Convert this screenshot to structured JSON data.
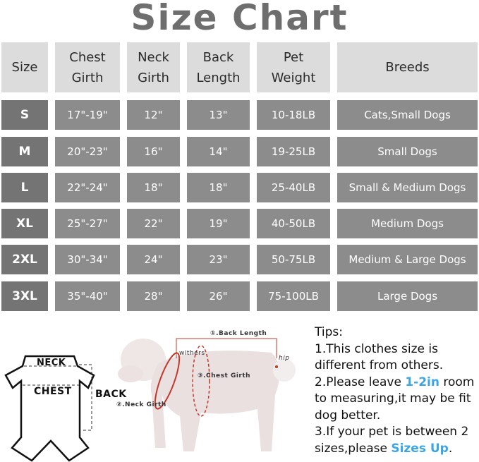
{
  "title": "Size Chart",
  "table": {
    "headers": [
      "Size",
      "Chest Girth",
      "Neck Girth",
      "Back Length",
      "Pet Weight",
      "Breeds"
    ],
    "rows": [
      [
        "S",
        "17\"-19\"",
        "12\"",
        "13\"",
        "10-18LB",
        "Cats,Small Dogs"
      ],
      [
        "M",
        "20\"-23\"",
        "16\"",
        "14\"",
        "19-25LB",
        "Small Dogs"
      ],
      [
        "L",
        "22\"-24\"",
        "18\"",
        "18\"",
        "25-40LB",
        "Small & Medium Dogs"
      ],
      [
        "XL",
        "25\"-27\"",
        "22\"",
        "19\"",
        "40-50LB",
        "Medium Dogs"
      ],
      [
        "2XL",
        "30\"-34\"",
        "24\"",
        "23\"",
        "50-75LB",
        "Medium & Large Dogs"
      ],
      [
        "3XL",
        "35\"-40\"",
        "28\"",
        "26\"",
        "75-100LB",
        "Large Dogs"
      ]
    ]
  },
  "diagram": {
    "garment_labels": {
      "neck": "NECK",
      "chest": "CHEST",
      "back": "BACK"
    },
    "dog_labels": {
      "back_length": "①.Back Length",
      "neck_girth": "②.Neck Girth",
      "chest_girth": "③.Chest Girth",
      "withers": "withers",
      "hip": "hip"
    }
  },
  "tips": {
    "heading": "Tips:",
    "tip1": "1.This clothes size is different from others.",
    "tip2_pre": "2.Please leave ",
    "tip2_hl": "1-2in",
    "tip2_post": " room to measuring,it may be fit dog better.",
    "tip3_pre": "3.If your pet is between 2 sizes,please ",
    "tip3_hl": "Sizes Up",
    "tip3_post": "."
  },
  "colors": {
    "header_bg": "#dcdcdc",
    "size_bg": "#747474",
    "value_bg": "#8c8c8c",
    "highlight": "#3aa6e8",
    "measure_line": "#c0392b"
  }
}
